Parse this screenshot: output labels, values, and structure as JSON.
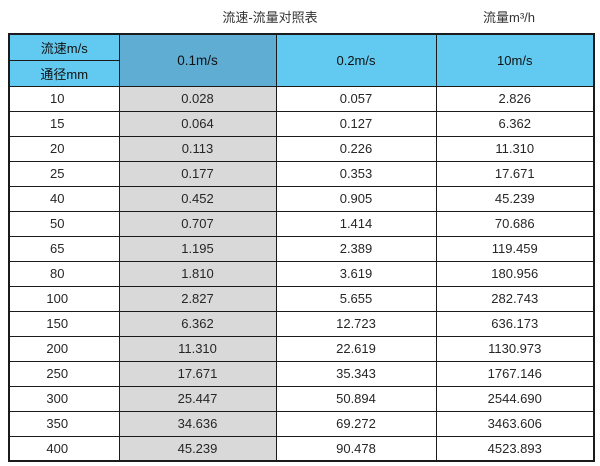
{
  "titles": {
    "main": "流速-流量对照表",
    "unit": "流量m³/h"
  },
  "colors": {
    "header_blue": "#62c9f0",
    "header_blue_selected": "#5fadd2",
    "highlight_gray": "#d9d9d9",
    "border": "#1b1b1b"
  },
  "chart_data": {
    "type": "table",
    "title": "流速-流量对照表",
    "unit_header": "流量m³/h",
    "corner": {
      "top": "流速m/s",
      "bottom": "通径mm"
    },
    "velocity_columns": [
      "0.1m/s",
      "0.2m/s",
      "10m/s"
    ],
    "highlighted_column": "0.1m/s",
    "columns": [
      "通径mm",
      "0.1m/s",
      "0.2m/s",
      "10m/s"
    ],
    "rows": [
      [
        "10",
        "0.028",
        "0.057",
        "2.826"
      ],
      [
        "15",
        "0.064",
        "0.127",
        "6.362"
      ],
      [
        "20",
        "0.113",
        "0.226",
        "11.310"
      ],
      [
        "25",
        "0.177",
        "0.353",
        "17.671"
      ],
      [
        "40",
        "0.452",
        "0.905",
        "45.239"
      ],
      [
        "50",
        "0.707",
        "1.414",
        "70.686"
      ],
      [
        "65",
        "1.195",
        "2.389",
        "119.459"
      ],
      [
        "80",
        "1.810",
        "3.619",
        "180.956"
      ],
      [
        "100",
        "2.827",
        "5.655",
        "282.743"
      ],
      [
        "150",
        "6.362",
        "12.723",
        "636.173"
      ],
      [
        "200",
        "11.310",
        "22.619",
        "1130.973"
      ],
      [
        "250",
        "17.671",
        "35.343",
        "1767.146"
      ],
      [
        "300",
        "25.447",
        "50.894",
        "2544.690"
      ],
      [
        "350",
        "34.636",
        "69.272",
        "3463.606"
      ],
      [
        "400",
        "45.239",
        "90.478",
        "4523.893"
      ]
    ]
  }
}
